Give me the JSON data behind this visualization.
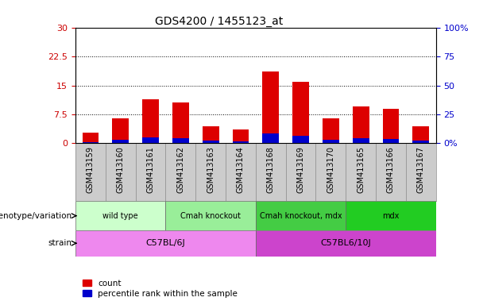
{
  "title": "GDS4200 / 1455123_at",
  "samples": [
    "GSM413159",
    "GSM413160",
    "GSM413161",
    "GSM413162",
    "GSM413163",
    "GSM413164",
    "GSM413168",
    "GSM413169",
    "GSM413170",
    "GSM413165",
    "GSM413166",
    "GSM413167"
  ],
  "count_values": [
    2.8,
    6.5,
    11.5,
    10.5,
    4.5,
    3.5,
    18.5,
    16.0,
    6.5,
    9.5,
    9.0,
    4.5
  ],
  "percentile_values": [
    0.4,
    0.9,
    1.5,
    1.4,
    0.7,
    0.6,
    2.5,
    2.0,
    0.9,
    1.3,
    1.1,
    0.7
  ],
  "left_ylim": [
    0,
    30
  ],
  "right_ylim": [
    0,
    100
  ],
  "left_yticks": [
    0,
    7.5,
    15,
    22.5,
    30
  ],
  "right_yticks": [
    0,
    25,
    50,
    75,
    100
  ],
  "left_ytick_labels": [
    "0",
    "7.5",
    "15",
    "22.5",
    "30"
  ],
  "right_ytick_labels": [
    "0%",
    "25",
    "50",
    "75",
    "100%"
  ],
  "bar_color_red": "#dd0000",
  "bar_color_blue": "#0000cc",
  "bg_color": "#ffffff",
  "xlabel_bg": "#cccccc",
  "genotype_groups": [
    {
      "label": "wild type",
      "start": 0,
      "end": 2,
      "color": "#ccffcc"
    },
    {
      "label": "Cmah knockout",
      "start": 3,
      "end": 5,
      "color": "#99ee99"
    },
    {
      "label": "Cmah knockout, mdx",
      "start": 6,
      "end": 8,
      "color": "#44cc44"
    },
    {
      "label": "mdx",
      "start": 9,
      "end": 11,
      "color": "#22cc22"
    }
  ],
  "strain_groups": [
    {
      "label": "C57BL/6J",
      "start": 0,
      "end": 5,
      "color": "#ee88ee"
    },
    {
      "label": "C57BL6/10J",
      "start": 6,
      "end": 11,
      "color": "#cc44cc"
    }
  ],
  "legend_count_label": "count",
  "legend_percentile_label": "percentile rank within the sample",
  "left_ylabel_color": "#cc0000",
  "right_ylabel_color": "#0000cc",
  "genotype_label": "genotype/variation",
  "strain_label": "strain",
  "bar_width": 0.55
}
